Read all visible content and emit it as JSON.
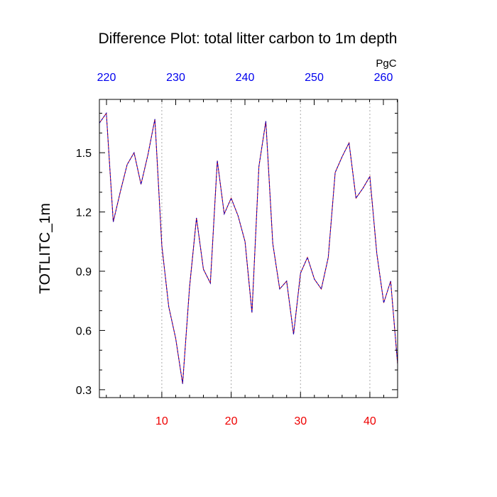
{
  "chart_data": {
    "type": "line",
    "title": "Difference Plot: total litter carbon to 1m depth",
    "ylabel": "TOTLITC_1m",
    "top_axis_unit": "PgC",
    "x_bottom": {
      "range": [
        1,
        44
      ],
      "ticks": [
        10,
        20,
        30,
        40
      ],
      "tick_color": "#ee0000"
    },
    "x_top": {
      "ticks": [
        220,
        230,
        240,
        250,
        260
      ],
      "tick_color": "#0000ee"
    },
    "ylim": [
      0.26,
      1.77
    ],
    "y_ticks": [
      0.3,
      0.6,
      0.9,
      1.2,
      1.5
    ],
    "y_tick_labels": [
      "0.3",
      "0.6",
      "0.9",
      "1.2",
      "1.5"
    ],
    "grid": "vertical dotted at bottom-axis major ticks",
    "series": [
      {
        "color": "#0000cc",
        "overlay_color": "#cc0000",
        "style": "dashed",
        "x": [
          1,
          2,
          3,
          4,
          5,
          6,
          7,
          8,
          9,
          10,
          11,
          12,
          13,
          14,
          15,
          16,
          17,
          18,
          19,
          20,
          21,
          22,
          23,
          24,
          25,
          26,
          27,
          28,
          29,
          30,
          31,
          32,
          33,
          34,
          35,
          36,
          37,
          38,
          39,
          40,
          41,
          42,
          43,
          44
        ],
        "values": [
          1.65,
          1.7,
          1.15,
          1.3,
          1.44,
          1.5,
          1.34,
          1.49,
          1.67,
          1.03,
          0.72,
          0.56,
          0.33,
          0.82,
          1.17,
          0.91,
          0.84,
          1.46,
          1.19,
          1.27,
          1.18,
          1.05,
          0.69,
          1.43,
          1.66,
          1.04,
          0.81,
          0.85,
          0.58,
          0.89,
          0.97,
          0.86,
          0.81,
          0.97,
          1.4,
          1.48,
          1.55,
          1.27,
          1.32,
          1.38,
          0.99,
          0.74,
          0.85,
          0.43
        ]
      }
    ]
  }
}
